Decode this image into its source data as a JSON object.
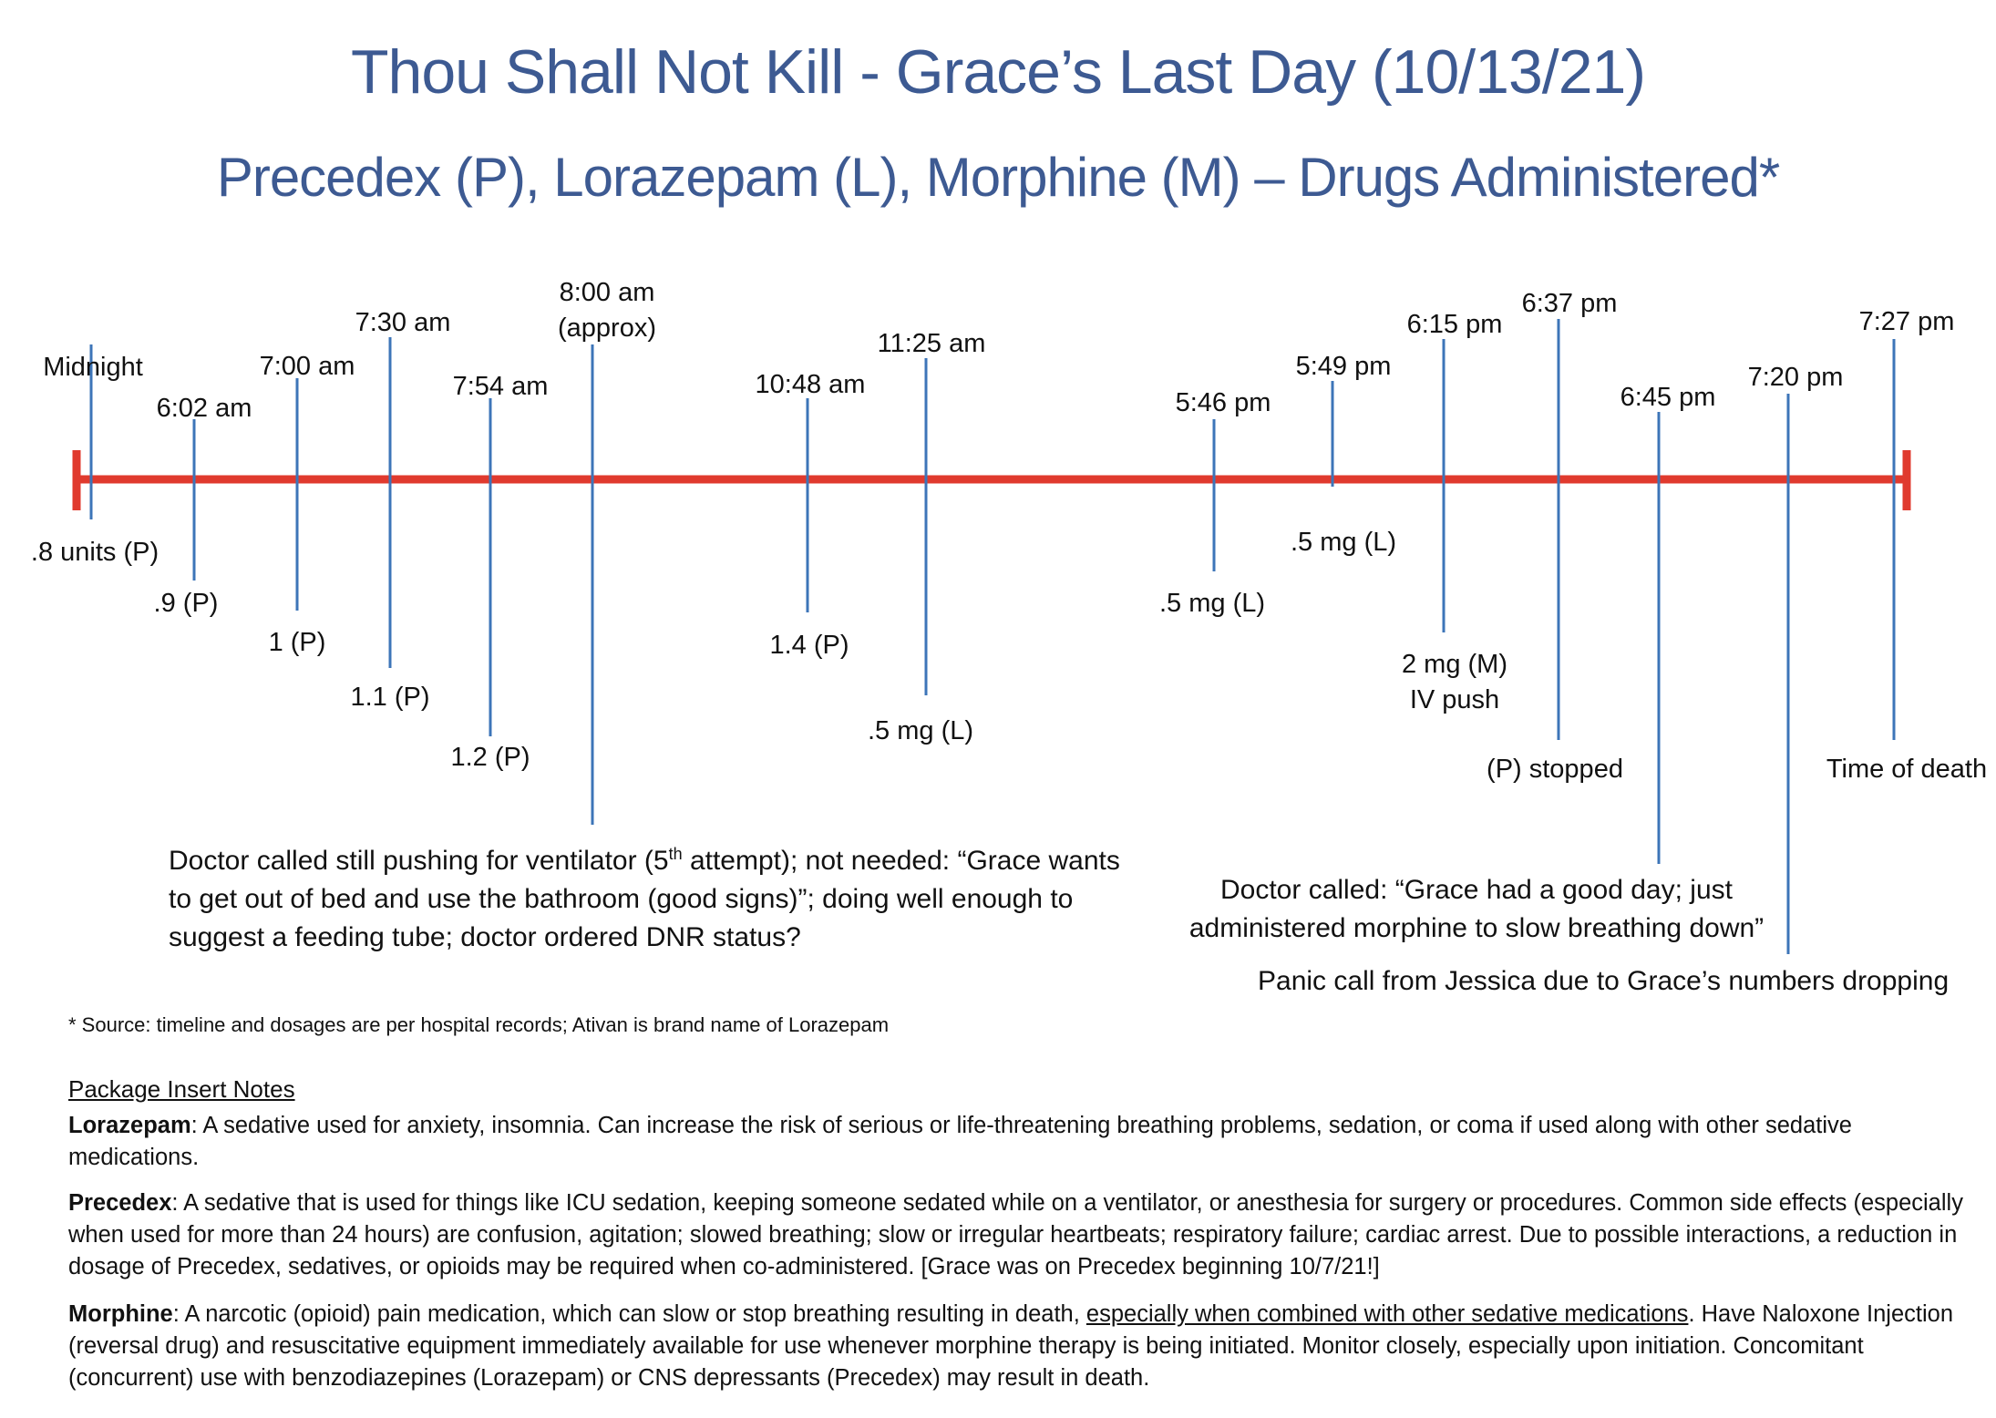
{
  "title": "Thou Shall Not Kill - Grace’s Last Day (10/13/21)",
  "subtitle": "Precedex (P), Lorazepam (L), Morphine (M) – Drugs Administered*",
  "colors": {
    "title": "#3d5a92",
    "axis": "#e03a2e",
    "tick": "#3d75b8"
  },
  "events": [
    {
      "time": "Midnight",
      "dose": ".8 units (P)"
    },
    {
      "time": "6:02 am",
      "dose": ".9 (P)"
    },
    {
      "time": "7:00 am",
      "dose": "1 (P)"
    },
    {
      "time": "7:30 am",
      "dose": "1.1 (P)"
    },
    {
      "time": "7:54 am",
      "dose": "1.2 (P)"
    },
    {
      "time": "8:00 am",
      "time2": "(approx)"
    },
    {
      "time": "10:48 am",
      "dose": "1.4 (P)"
    },
    {
      "time": "11:25 am",
      "dose": ".5 mg (L)"
    },
    {
      "time": "5:46 pm",
      "dose": ".5 mg (L)"
    },
    {
      "time": "5:49 pm",
      "dose": ".5 mg (L)"
    },
    {
      "time": "6:15 pm",
      "dose": "2 mg (M)",
      "dose2": "IV push"
    },
    {
      "time": "6:37 pm",
      "dose": "(P) stopped"
    },
    {
      "time": "6:45 pm"
    },
    {
      "time": "7:20 pm"
    },
    {
      "time": "7:27 pm",
      "dose": "Time of death"
    }
  ],
  "notes": {
    "left_pre": "Doctor called still pushing for ventilator (5",
    "left_sup": "th",
    "left_post": " attempt); not needed: “Grace wants to get out of bed and use the bathroom (good signs)”; doing well enough to suggest a feeding tube; doctor ordered DNR status?",
    "right_1": "Doctor called: “Grace had a good day; just administered morphine to slow breathing down”",
    "right_2": "Panic call from Jessica due to Grace’s numbers dropping"
  },
  "source": "* Source:  timeline and dosages are per hospital records; Ativan is brand name of Lorazepam",
  "insert": {
    "heading": "Package Insert Notes",
    "lorazepam_label": "Lorazepam",
    "lorazepam_text": ":  A sedative used for anxiety, insomnia. Can increase the risk of serious or life-threatening breathing problems, sedation, or coma if used along with other sedative medications.",
    "precedex_label": "Precedex",
    "precedex_text": ":  A sedative that is used for things like ICU sedation, keeping someone sedated while on a ventilator, or anesthesia for surgery or procedures. Common side effects (especially when used for more than 24 hours) are confusion, agitation; slowed breathing; slow or irregular heartbeats; respiratory failure; cardiac arrest.  Due to possible interactions, a reduction in dosage of Precedex, sedatives, or opioids may be required when co-administered. [Grace was on Precedex beginning 10/7/21!]",
    "morphine_label": "Morphine",
    "morphine_text_1": ":  A narcotic (opioid) pain medication, which can slow or stop breathing resulting in death, ",
    "morphine_underline": "especially when combined with other sedative medications",
    "morphine_text_2": ". Have Naloxone Injection (reversal drug) and resuscitative equipment immediately available for use whenever morphine therapy is being initiated.  Monitor closely, especially upon initiation. Concomitant (concurrent) use with benzodiazepines (Lorazepam) or CNS depressants (Precedex) may result in death."
  }
}
